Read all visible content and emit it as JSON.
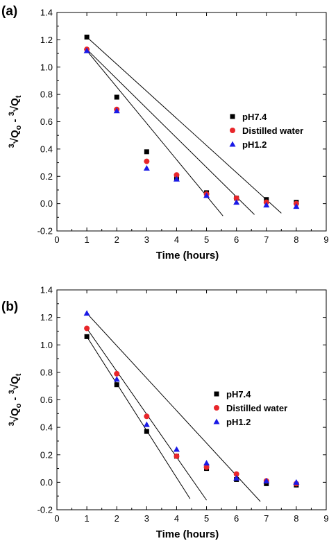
{
  "chart_data": [
    {
      "type": "scatter",
      "panel_label": "(a)",
      "xlabel": "Time (hours)",
      "ylabel": "3√Qo - 3√Qt",
      "ylabel_parts": {
        "pre1": "3",
        "sub1": "o",
        "pre2": "3",
        "sub2": "t"
      },
      "xlim": [
        0,
        9
      ],
      "ylim": [
        -0.2,
        1.4
      ],
      "x_ticks": [
        0,
        1,
        2,
        3,
        4,
        5,
        6,
        7,
        8,
        9
      ],
      "y_ticks": [
        -0.2,
        0.0,
        0.2,
        0.4,
        0.6,
        0.8,
        1.0,
        1.2,
        1.4
      ],
      "legend_position": "right",
      "series": [
        {
          "name": "pH7.4",
          "marker": "square",
          "color": "#000000",
          "x": [
            1,
            2,
            3,
            4,
            5,
            6,
            7,
            8
          ],
          "y": [
            1.22,
            0.78,
            0.38,
            0.19,
            0.08,
            0.04,
            0.03,
            0.01
          ]
        },
        {
          "name": "Distilled water",
          "marker": "circle",
          "color": "#e8262a",
          "x": [
            1,
            2,
            3,
            4,
            5,
            6,
            7,
            8
          ],
          "y": [
            1.13,
            0.69,
            0.31,
            0.21,
            0.07,
            0.04,
            0.01,
            0.0
          ]
        },
        {
          "name": "pH1.2",
          "marker": "triangle",
          "color": "#1a1ae6",
          "x": [
            1,
            2,
            3,
            4,
            5,
            6,
            7,
            8
          ],
          "y": [
            1.12,
            0.68,
            0.26,
            0.18,
            0.06,
            0.01,
            -0.01,
            -0.02
          ]
        }
      ],
      "fit_lines": [
        {
          "x": [
            1,
            7.5
          ],
          "y": [
            1.22,
            -0.07
          ]
        },
        {
          "x": [
            1,
            6.6
          ],
          "y": [
            1.13,
            -0.08
          ]
        },
        {
          "x": [
            1,
            5.55
          ],
          "y": [
            1.12,
            -0.09
          ]
        }
      ]
    },
    {
      "type": "scatter",
      "panel_label": "(b)",
      "xlabel": "Time (hours)",
      "ylabel": "3√Qo - 3√Qt",
      "ylabel_parts": {
        "pre1": "3",
        "sub1": "o",
        "pre2": "3",
        "sub2": "t"
      },
      "xlim": [
        0,
        9
      ],
      "ylim": [
        -0.2,
        1.4
      ],
      "x_ticks": [
        0,
        1,
        2,
        3,
        4,
        5,
        6,
        7,
        8,
        9
      ],
      "y_ticks": [
        -0.2,
        0.0,
        0.2,
        0.4,
        0.6,
        0.8,
        1.0,
        1.2,
        1.4
      ],
      "legend_position": "right",
      "series": [
        {
          "name": "pH7.4",
          "marker": "square",
          "color": "#000000",
          "x": [
            1,
            2,
            3,
            4,
            5,
            6,
            7,
            8
          ],
          "y": [
            1.06,
            0.71,
            0.37,
            0.19,
            0.1,
            0.02,
            -0.01,
            -0.02
          ]
        },
        {
          "name": "Distilled water",
          "marker": "circle",
          "color": "#e8262a",
          "x": [
            1,
            2,
            3,
            4,
            5,
            6,
            7,
            8
          ],
          "y": [
            1.12,
            0.79,
            0.48,
            0.19,
            0.11,
            0.06,
            0.01,
            -0.01
          ]
        },
        {
          "name": "pH1.2",
          "marker": "triangle",
          "color": "#1a1ae6",
          "x": [
            1,
            2,
            3,
            4,
            5,
            6,
            7,
            8
          ],
          "y": [
            1.23,
            0.75,
            0.42,
            0.24,
            0.14,
            0.03,
            0.01,
            0.0
          ]
        }
      ],
      "fit_lines": [
        {
          "x": [
            1,
            6.8
          ],
          "y": [
            1.23,
            -0.14
          ]
        },
        {
          "x": [
            1,
            5.0
          ],
          "y": [
            1.12,
            -0.13
          ]
        },
        {
          "x": [
            1,
            4.45
          ],
          "y": [
            1.06,
            -0.12
          ]
        }
      ]
    }
  ]
}
